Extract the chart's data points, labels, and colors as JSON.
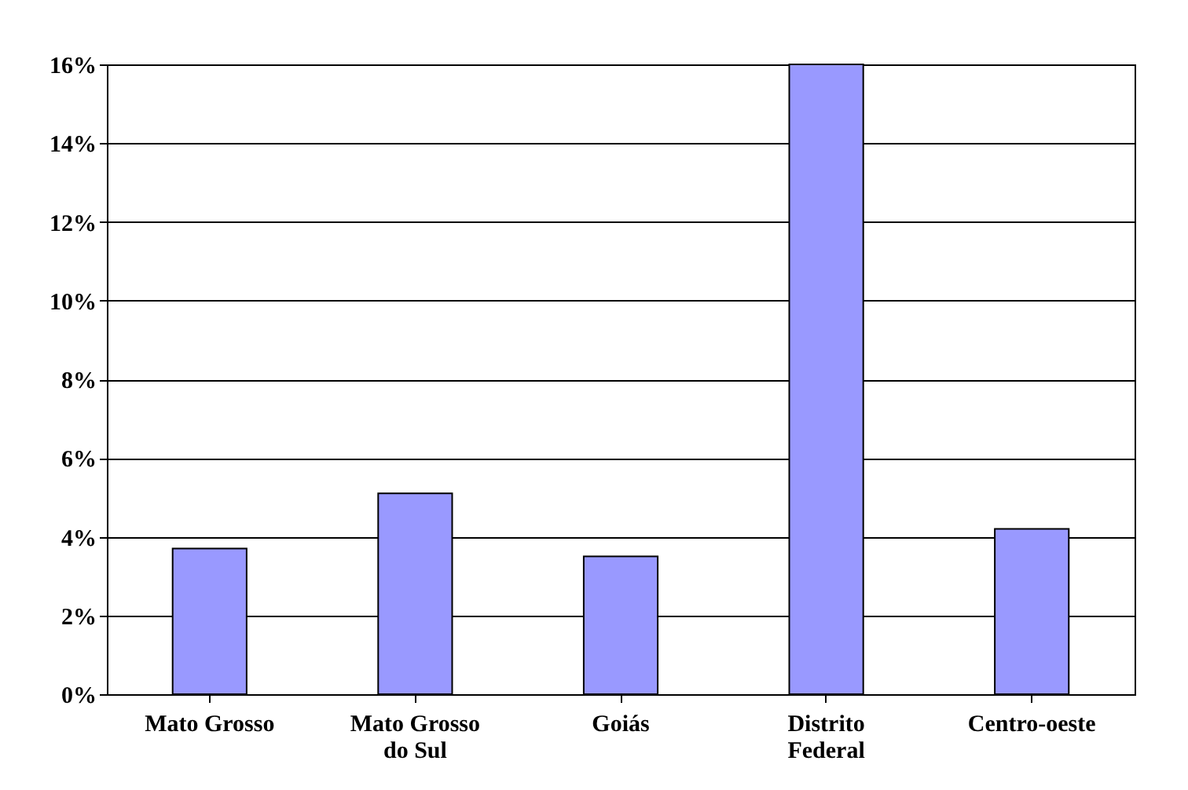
{
  "chart_data": {
    "type": "bar",
    "categories": [
      "Mato Grosso",
      "Mato Grosso do Sul",
      "Goiás",
      "Distrito Federal",
      "Centro-oeste"
    ],
    "values": [
      3.7,
      5.1,
      3.5,
      16.0,
      4.2
    ],
    "color": "#9999ff",
    "ylim": [
      0,
      16
    ],
    "yticks": [
      {
        "value": 0,
        "label": "0%"
      },
      {
        "value": 2,
        "label": "2%"
      },
      {
        "value": 4,
        "label": "4%"
      },
      {
        "value": 6,
        "label": "6%"
      },
      {
        "value": 8,
        "label": "8%"
      },
      {
        "value": 10,
        "label": "10%"
      },
      {
        "value": 12,
        "label": "12%"
      },
      {
        "value": 14,
        "label": "14%"
      },
      {
        "value": 16,
        "label": "16%"
      }
    ],
    "grid": "y"
  }
}
